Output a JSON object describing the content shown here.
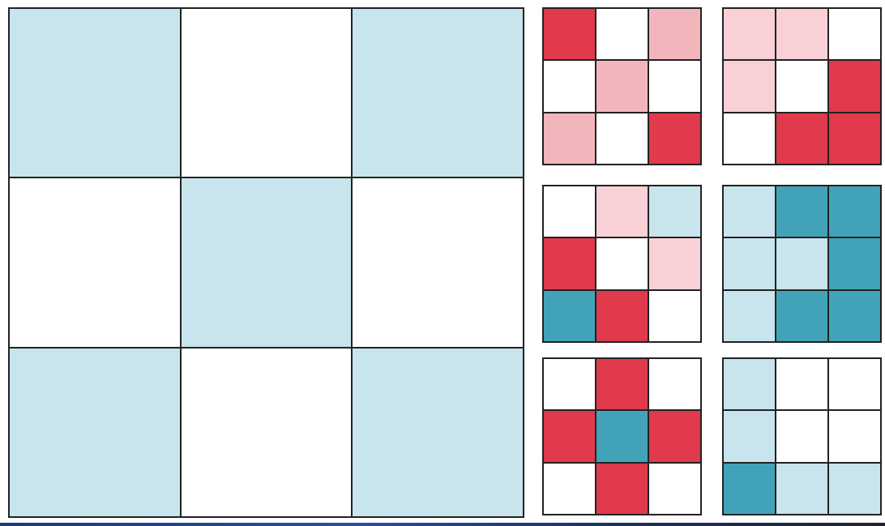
{
  "colors": {
    "W": "#ffffff",
    "LB": "#c8e4ec",
    "T": "#42a3b8",
    "R": "#e03a4c",
    "P": "#f3b5bc",
    "LP": "#f8d0d5"
  },
  "large_grid": [
    [
      "LB",
      "W",
      "LB"
    ],
    [
      "W",
      "LB",
      "W"
    ],
    [
      "LB",
      "W",
      "LB"
    ]
  ],
  "small_grids": [
    [
      [
        "R",
        "W",
        "P"
      ],
      [
        "W",
        "P",
        "W"
      ],
      [
        "P",
        "W",
        "R"
      ]
    ],
    [
      [
        "LP",
        "LP",
        "W"
      ],
      [
        "LP",
        "W",
        "R"
      ],
      [
        "W",
        "R",
        "R"
      ]
    ],
    [
      [
        "W",
        "LP",
        "LB"
      ],
      [
        "R",
        "W",
        "LP"
      ],
      [
        "T",
        "R",
        "W"
      ]
    ],
    [
      [
        "LB",
        "T",
        "T"
      ],
      [
        "LB",
        "LB",
        "T"
      ],
      [
        "LB",
        "T",
        "T"
      ]
    ],
    [
      [
        "W",
        "R",
        "W"
      ],
      [
        "R",
        "T",
        "R"
      ],
      [
        "W",
        "R",
        "W"
      ]
    ],
    [
      [
        "LB",
        "W",
        "W"
      ],
      [
        "LB",
        "W",
        "W"
      ],
      [
        "T",
        "LB",
        "LB"
      ]
    ]
  ]
}
